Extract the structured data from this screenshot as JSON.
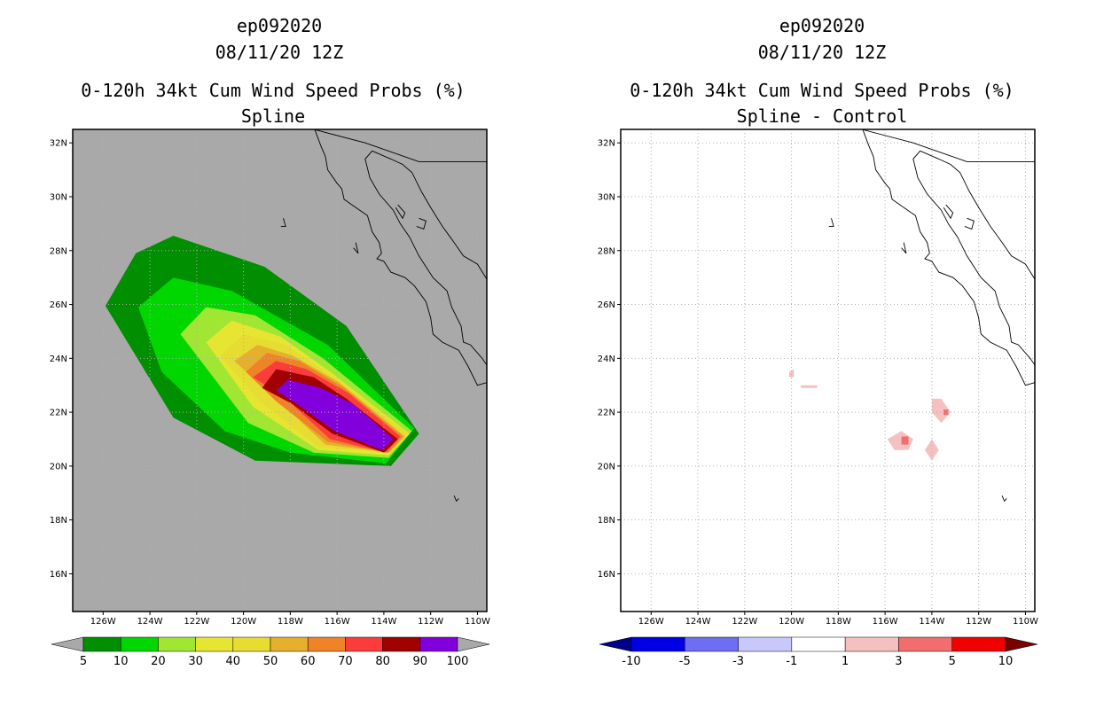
{
  "chart_data": [
    {
      "type": "heatmap",
      "title_lines": [
        "ep092020",
        "08/11/20 12Z",
        "0-120h 34kt Cum Wind Speed Probs (%)",
        "Spline"
      ],
      "background_color": "#a9a9a9",
      "x_ticks": [
        -126,
        -124,
        -122,
        -120,
        -118,
        -116,
        -114,
        -112,
        -110
      ],
      "x_tick_labels": [
        "126W",
        "124W",
        "122W",
        "120W",
        "118W",
        "116W",
        "114W",
        "112W",
        "110W"
      ],
      "y_ticks": [
        16,
        18,
        20,
        22,
        24,
        26,
        28,
        30,
        32
      ],
      "y_tick_labels": [
        "16N",
        "18N",
        "20N",
        "22N",
        "24N",
        "26N",
        "28N",
        "30N",
        "32N"
      ],
      "xlim": [
        -127.3,
        -109.6
      ],
      "ylim": [
        14.6,
        32.5
      ],
      "grid": true,
      "colorbar": {
        "labels": [
          "5",
          "10",
          "20",
          "30",
          "40",
          "50",
          "60",
          "70",
          "80",
          "90",
          "100"
        ],
        "colors": [
          "#a9a9a9",
          "#008f00",
          "#00d700",
          "#a0e632",
          "#e6e632",
          "#e6dc32",
          "#e6af2d",
          "#f08228",
          "#fa3c3c",
          "#a00000",
          "#8200dc",
          "#a9a9a9"
        ]
      },
      "contours": [
        {
          "level": 5,
          "color": "#008f00",
          "points": [
            [
              -125.9,
              25.95
            ],
            [
              -124.6,
              27.9
            ],
            [
              -123.0,
              28.55
            ],
            [
              -119.1,
              27.4
            ],
            [
              -115.6,
              25.2
            ],
            [
              -112.5,
              21.2
            ],
            [
              -113.7,
              20.0
            ],
            [
              -119.5,
              20.2
            ],
            [
              -123.0,
              21.8
            ]
          ]
        },
        {
          "level": 10,
          "color": "#00d700",
          "points": [
            [
              -124.5,
              25.9
            ],
            [
              -123.0,
              27.0
            ],
            [
              -120.5,
              26.5
            ],
            [
              -116.4,
              24.5
            ],
            [
              -112.7,
              21.4
            ],
            [
              -113.9,
              20.1
            ],
            [
              -118.0,
              20.5
            ],
            [
              -120.8,
              21.3
            ],
            [
              -123.5,
              23.5
            ]
          ]
        },
        {
          "level": 20,
          "color": "#a0e632",
          "points": [
            [
              -122.7,
              24.9
            ],
            [
              -121.6,
              25.9
            ],
            [
              -119.5,
              25.6
            ],
            [
              -116.6,
              24.0
            ],
            [
              -112.8,
              21.3
            ],
            [
              -113.8,
              20.3
            ],
            [
              -117.0,
              20.5
            ],
            [
              -119.8,
              21.6
            ]
          ]
        },
        {
          "level": 30,
          "color": "#e6e632",
          "points": [
            [
              -121.6,
              24.6
            ],
            [
              -120.5,
              25.4
            ],
            [
              -118.4,
              24.8
            ],
            [
              -116.3,
              23.5
            ],
            [
              -112.9,
              21.2
            ],
            [
              -113.8,
              20.4
            ],
            [
              -116.8,
              20.6
            ],
            [
              -119.6,
              22.2
            ]
          ]
        },
        {
          "level": 40,
          "color": "#e6dc32",
          "points": [
            [
              -121.0,
              24.1
            ],
            [
              -120.0,
              24.9
            ],
            [
              -118.2,
              24.5
            ],
            [
              -116.1,
              23.3
            ],
            [
              -113.0,
              21.2
            ],
            [
              -113.8,
              20.5
            ],
            [
              -116.8,
              20.7
            ],
            [
              -119.3,
              22.4
            ]
          ]
        },
        {
          "level": 50,
          "color": "#e6af2d",
          "points": [
            [
              -120.4,
              23.9
            ],
            [
              -119.4,
              24.5
            ],
            [
              -117.9,
              24.1
            ],
            [
              -115.9,
              23.1
            ],
            [
              -113.1,
              21.1
            ],
            [
              -113.8,
              20.5
            ],
            [
              -116.5,
              20.8
            ],
            [
              -118.7,
              22.6
            ]
          ]
        },
        {
          "level": 60,
          "color": "#f08228",
          "points": [
            [
              -119.9,
              23.5
            ],
            [
              -119.0,
              24.2
            ],
            [
              -117.6,
              23.9
            ],
            [
              -115.7,
              22.9
            ],
            [
              -113.2,
              21.1
            ],
            [
              -113.8,
              20.5
            ],
            [
              -116.4,
              20.9
            ],
            [
              -118.6,
              22.4
            ]
          ]
        },
        {
          "level": 70,
          "color": "#fa3c3c",
          "points": [
            [
              -119.6,
              23.3
            ],
            [
              -118.6,
              23.9
            ],
            [
              -117.3,
              23.6
            ],
            [
              -115.5,
              22.7
            ],
            [
              -113.3,
              21.1
            ],
            [
              -113.9,
              20.5
            ],
            [
              -116.3,
              21.0
            ],
            [
              -118.3,
              22.6
            ]
          ]
        },
        {
          "level": 80,
          "color": "#a00000",
          "points": [
            [
              -119.2,
              22.9
            ],
            [
              -118.6,
              23.6
            ],
            [
              -117.0,
              23.3
            ],
            [
              -115.6,
              22.5
            ],
            [
              -113.4,
              21.0
            ],
            [
              -114.0,
              20.5
            ],
            [
              -116.2,
              21.2
            ],
            [
              -117.9,
              22.3
            ]
          ]
        },
        {
          "level": 90,
          "color": "#8200dc",
          "points": [
            [
              -118.6,
              22.8
            ],
            [
              -118.1,
              23.2
            ],
            [
              -116.7,
              22.9
            ],
            [
              -115.3,
              22.3
            ],
            [
              -113.6,
              21.0
            ],
            [
              -114.1,
              20.6
            ],
            [
              -116.1,
              21.3
            ],
            [
              -117.7,
              22.3
            ]
          ]
        }
      ]
    },
    {
      "type": "heatmap",
      "title_lines": [
        "ep092020",
        "08/11/20 12Z",
        "0-120h 34kt Cum Wind Speed Probs (%)",
        "Spline - Control"
      ],
      "background_color": "#ffffff",
      "x_ticks": [
        -126,
        -124,
        -122,
        -120,
        -118,
        -116,
        -114,
        -112,
        -110
      ],
      "x_tick_labels": [
        "126W",
        "124W",
        "122W",
        "120W",
        "118W",
        "116W",
        "114W",
        "112W",
        "110W"
      ],
      "y_ticks": [
        16,
        18,
        20,
        22,
        24,
        26,
        28,
        30,
        32
      ],
      "y_tick_labels": [
        "16N",
        "18N",
        "20N",
        "22N",
        "24N",
        "26N",
        "28N",
        "30N",
        "32N"
      ],
      "xlim": [
        -127.3,
        -109.6
      ],
      "ylim": [
        14.6,
        32.5
      ],
      "grid": true,
      "colorbar": {
        "labels": [
          "-10",
          "-5",
          "-3",
          "-1",
          "1",
          "3",
          "5",
          "10"
        ],
        "colors": [
          "#00008c",
          "#0000e6",
          "#6e6ef0",
          "#c8c8fa",
          "#ffffff",
          "#f5c0c0",
          "#f06e6e",
          "#f00000",
          "#780000"
        ]
      },
      "contours": [
        {
          "level": 1,
          "color": "#f5c0c0",
          "points": [
            [
              -120.1,
              23.5
            ],
            [
              -119.9,
              23.6
            ],
            [
              -119.9,
              23.3
            ],
            [
              -120.1,
              23.3
            ]
          ]
        },
        {
          "level": 1,
          "color": "#f5c0c0",
          "points": [
            [
              -119.6,
              23.0
            ],
            [
              -118.9,
              23.0
            ],
            [
              -118.9,
              22.9
            ],
            [
              -119.6,
              22.9
            ]
          ]
        },
        {
          "level": 1,
          "color": "#f5c0c0",
          "points": [
            [
              -115.9,
              21.0
            ],
            [
              -115.3,
              21.3
            ],
            [
              -114.8,
              21.0
            ],
            [
              -115.0,
              20.6
            ],
            [
              -115.6,
              20.6
            ]
          ]
        },
        {
          "level": 1,
          "color": "#f5c0c0",
          "points": [
            [
              -114.0,
              22.5
            ],
            [
              -113.6,
              22.5
            ],
            [
              -113.2,
              22.0
            ],
            [
              -113.6,
              21.6
            ],
            [
              -114.0,
              22.0
            ]
          ]
        },
        {
          "level": 1,
          "color": "#f5c0c0",
          "points": [
            [
              -114.3,
              20.6
            ],
            [
              -114.0,
              21.0
            ],
            [
              -113.7,
              20.6
            ],
            [
              -114.0,
              20.2
            ]
          ]
        },
        {
          "level": 3,
          "color": "#f06e6e",
          "points": [
            [
              -115.3,
              21.1
            ],
            [
              -115.0,
              21.1
            ],
            [
              -115.0,
              20.8
            ],
            [
              -115.3,
              20.8
            ]
          ]
        },
        {
          "level": 3,
          "color": "#f06e6e",
          "points": [
            [
              -113.5,
              22.1
            ],
            [
              -113.3,
              22.1
            ],
            [
              -113.3,
              21.9
            ],
            [
              -113.5,
              21.9
            ]
          ]
        }
      ]
    }
  ],
  "coastline": [
    [
      [
        -117.2,
        33.0
      ],
      [
        -117.0,
        32.6
      ],
      [
        -116.7,
        31.9
      ],
      [
        -116.5,
        31.5
      ],
      [
        -116.4,
        31.0
      ],
      [
        -116.0,
        30.5
      ],
      [
        -115.8,
        30.3
      ],
      [
        -115.7,
        29.9
      ],
      [
        -115.2,
        29.6
      ],
      [
        -114.7,
        29.3
      ],
      [
        -114.5,
        28.7
      ],
      [
        -114.2,
        28.3
      ],
      [
        -114.1,
        27.9
      ],
      [
        -114.3,
        27.7
      ],
      [
        -114.0,
        27.6
      ],
      [
        -113.7,
        27.2
      ],
      [
        -113.1,
        27.0
      ],
      [
        -112.7,
        26.7
      ],
      [
        -112.2,
        26.1
      ],
      [
        -112.0,
        25.5
      ],
      [
        -111.9,
        24.9
      ],
      [
        -111.5,
        24.6
      ],
      [
        -110.8,
        24.3
      ],
      [
        -110.4,
        23.7
      ],
      [
        -110.0,
        23.0
      ],
      [
        -109.6,
        23.1
      ],
      [
        -109.4,
        23.5
      ],
      [
        -109.8,
        24.0
      ],
      [
        -110.3,
        24.5
      ],
      [
        -110.6,
        24.6
      ],
      [
        -110.7,
        25.2
      ],
      [
        -111.1,
        25.9
      ],
      [
        -111.3,
        26.5
      ],
      [
        -111.9,
        27.0
      ],
      [
        -112.5,
        27.8
      ],
      [
        -112.9,
        28.5
      ],
      [
        -113.3,
        29.0
      ],
      [
        -113.6,
        29.5
      ],
      [
        -114.2,
        30.1
      ],
      [
        -114.6,
        30.7
      ],
      [
        -114.8,
        31.4
      ],
      [
        -114.5,
        31.7
      ],
      [
        -113.7,
        31.4
      ],
      [
        -113.2,
        31.2
      ],
      [
        -112.8,
        30.9
      ],
      [
        -112.4,
        30.2
      ],
      [
        -112.0,
        29.6
      ],
      [
        -111.5,
        28.9
      ],
      [
        -111.0,
        28.3
      ],
      [
        -110.6,
        27.8
      ],
      [
        -110.0,
        27.5
      ],
      [
        -109.5,
        26.8
      ],
      [
        -109.2,
        26.3
      ],
      [
        -108.8,
        26.0
      ]
    ],
    [
      [
        -112.6,
        28.9
      ],
      [
        -112.3,
        28.8
      ],
      [
        -112.2,
        29.1
      ],
      [
        -112.5,
        29.2
      ]
    ],
    [
      [
        -113.5,
        29.6
      ],
      [
        -113.2,
        29.2
      ],
      [
        -113.1,
        29.4
      ],
      [
        -113.4,
        29.7
      ]
    ],
    [
      [
        -118.3,
        29.2
      ],
      [
        -118.2,
        28.9
      ],
      [
        -118.4,
        28.9
      ]
    ],
    [
      [
        -115.3,
        28.1
      ],
      [
        -115.1,
        27.9
      ],
      [
        -115.2,
        28.3
      ]
    ],
    [
      [
        -110.8,
        18.8
      ],
      [
        -110.9,
        18.7
      ],
      [
        -111.0,
        18.9
      ]
    ]
  ]
}
